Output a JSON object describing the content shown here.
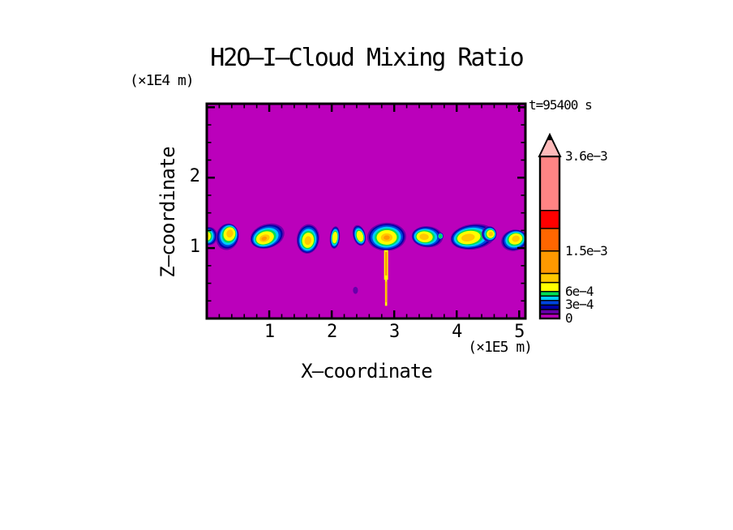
{
  "chart_data": {
    "type": "heatmap",
    "title": "H2O—I—Cloud Mixing Ratio",
    "time_label": "t=95400 s",
    "xlabel": "X—coordinate",
    "x_unit": "(×1E5 m)",
    "zlabel": "Z—coordinate",
    "z_unit": "(×1E4 m)",
    "x_range": [
      0,
      5.1
    ],
    "z_range": [
      0,
      3.05
    ],
    "x_major_ticks": [
      1,
      2,
      3,
      4,
      5
    ],
    "x_minor_step": 0.2,
    "z_major_ticks": [
      1,
      2,
      3
    ],
    "z_labeled_ticks": [
      1,
      2
    ],
    "z_minor_step": 0.25,
    "background_color": "#BB00BB",
    "frame_color": "#000000",
    "palette": [
      {
        "from": 0,
        "to": 0.0001,
        "color": "#BB00BB"
      },
      {
        "from": 0.0001,
        "to": 0.0002,
        "color": "#6600AA"
      },
      {
        "from": 0.0002,
        "to": 0.0003,
        "color": "#0000A8"
      },
      {
        "from": 0.0003,
        "to": 0.0004,
        "color": "#0044DD"
      },
      {
        "from": 0.0004,
        "to": 0.0005,
        "color": "#00CCFF"
      },
      {
        "from": 0.0005,
        "to": 0.0006,
        "color": "#00DD55"
      },
      {
        "from": 0.0006,
        "to": 0.0008,
        "color": "#FFFF00"
      },
      {
        "from": 0.0008,
        "to": 0.001,
        "color": "#FFC800"
      },
      {
        "from": 0.001,
        "to": 0.0015,
        "color": "#FF9900"
      },
      {
        "from": 0.0015,
        "to": 0.002,
        "color": "#FF6600"
      },
      {
        "from": 0.002,
        "to": 0.0024,
        "color": "#FF0000"
      },
      {
        "from": 0.0024,
        "to": 0.0036,
        "color": "#FF8484"
      }
    ],
    "colorbar": {
      "max": 0.0036,
      "overflow_color": "#FFBABA",
      "labels": [
        {
          "value": 0.0036,
          "text": "3.6e−3"
        },
        {
          "value": 0.0015,
          "text": "1.5e−3"
        },
        {
          "value": 0.0006,
          "text": "6e−4"
        },
        {
          "value": 0.0003,
          "text": "3e−4"
        },
        {
          "value": 0,
          "text": "0"
        }
      ]
    },
    "cloud_band": {
      "blobs": [
        {
          "x": 0.04,
          "z": 1.17,
          "rx": 0.13,
          "ry": 0.13,
          "rot": 0,
          "peak": 0.0009,
          "skew_x": -4,
          "skew_y": 0
        },
        {
          "x": 0.33,
          "z": 1.16,
          "rx": 0.18,
          "ry": 0.19,
          "rot": 15,
          "peak": 0.0009,
          "skew_x": 3,
          "skew_y": -4
        },
        {
          "x": 0.97,
          "z": 1.17,
          "rx": 0.28,
          "ry": 0.17,
          "rot": -18,
          "peak": 0.0011,
          "skew_x": -4,
          "skew_y": 3
        },
        {
          "x": 1.62,
          "z": 1.13,
          "rx": 0.18,
          "ry": 0.21,
          "rot": 8,
          "peak": 0.0009,
          "skew_x": 0,
          "skew_y": 2
        },
        {
          "x": 2.05,
          "z": 1.15,
          "rx": 0.08,
          "ry": 0.16,
          "rot": 5,
          "peak": 0.00065,
          "skew_x": 0,
          "skew_y": 0
        },
        {
          "x": 2.44,
          "z": 1.18,
          "rx": 0.1,
          "ry": 0.15,
          "rot": -15,
          "peak": 0.0007,
          "skew_x": 1,
          "skew_y": 1
        },
        {
          "x": 2.88,
          "z": 1.16,
          "rx": 0.31,
          "ry": 0.2,
          "rot": -2,
          "peak": 0.0013,
          "skew_x": 0,
          "skew_y": 1
        },
        {
          "x": 3.53,
          "z": 1.16,
          "rx": 0.25,
          "ry": 0.15,
          "rot": 4,
          "peak": 0.0009,
          "skew_x": -4,
          "skew_y": 0
        },
        {
          "x": 3.74,
          "z": 1.17,
          "rx": 0.05,
          "ry": 0.05,
          "rot": 0,
          "peak": 0.00055,
          "skew_x": 0,
          "skew_y": 0
        },
        {
          "x": 4.26,
          "z": 1.16,
          "rx": 0.36,
          "ry": 0.18,
          "rot": -8,
          "peak": 0.0009,
          "skew_x": -6,
          "skew_y": 1
        },
        {
          "x": 4.52,
          "z": 1.2,
          "rx": 0.12,
          "ry": 0.11,
          "rot": 0,
          "peak": 0.00085,
          "skew_x": 2,
          "skew_y": 0
        },
        {
          "x": 4.92,
          "z": 1.11,
          "rx": 0.21,
          "ry": 0.15,
          "rot": -15,
          "peak": 0.001,
          "skew_x": 2,
          "skew_y": -2
        },
        {
          "x": 2.38,
          "z": 0.4,
          "rx": 0.04,
          "ry": 0.05,
          "rot": 0,
          "peak": 0.00015,
          "skew_x": 0,
          "skew_y": 0
        }
      ],
      "plume": {
        "x": 2.87,
        "segments": [
          {
            "z_bottom": 0.55,
            "z_top": 0.97,
            "width": 5.0,
            "core_width": 2.4
          },
          {
            "z_bottom": 0.18,
            "z_top": 0.55,
            "width": 2.6,
            "core_width": 1.2
          }
        ]
      }
    }
  }
}
